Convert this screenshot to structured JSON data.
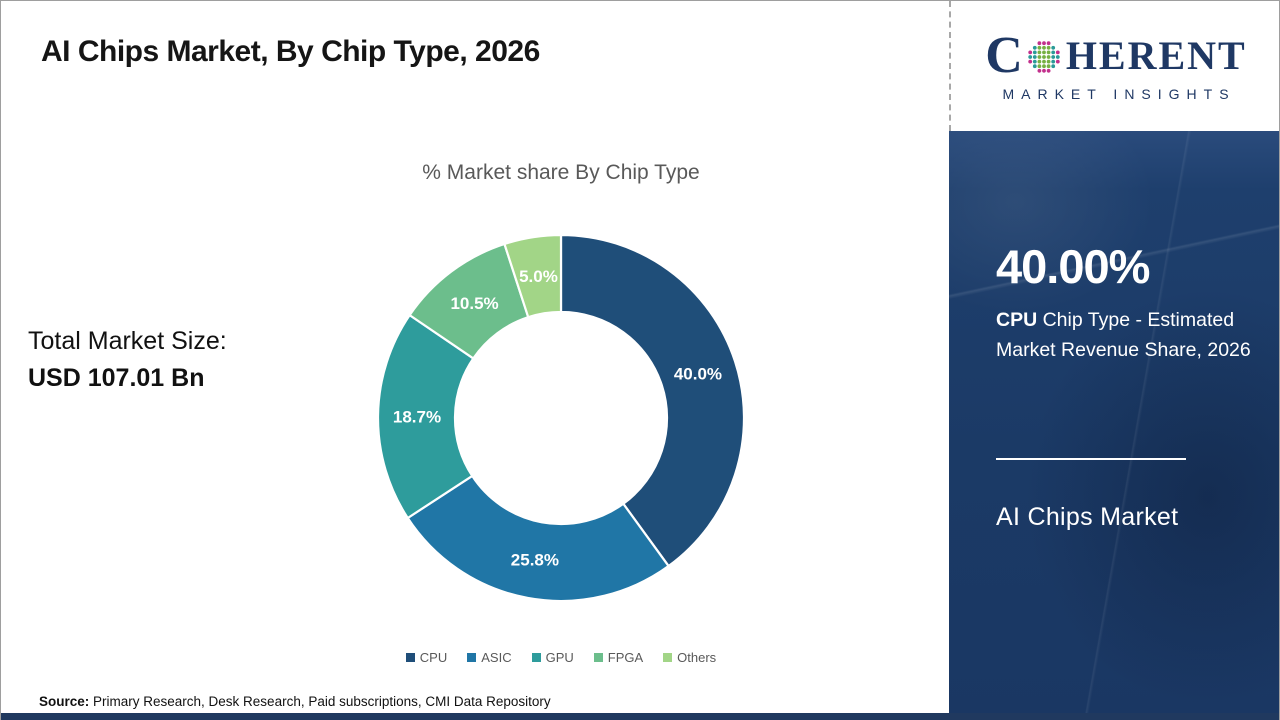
{
  "header": {
    "title": "AI Chips Market, By Chip Type, 2026"
  },
  "logo": {
    "brand_first_letter": "C",
    "brand_rest": "HERENT",
    "tagline": "MARKET INSIGHTS",
    "brand_color": "#1F3864",
    "dot_colors": [
      "#2B9A98",
      "#76B043",
      "#C2308C"
    ]
  },
  "left_panel": {
    "total_label": "Total Market Size:",
    "total_value": "USD 107.01 Bn"
  },
  "chart_data": {
    "type": "pie",
    "subtype": "donut",
    "title": "% Market share By Chip Type",
    "categories": [
      "CPU",
      "ASIC",
      "GPU",
      "FPGA",
      "Others"
    ],
    "values": [
      40.0,
      25.8,
      18.7,
      10.5,
      5.0
    ],
    "labels": [
      "40.0%",
      "25.8%",
      "18.7%",
      "10.5%",
      "5.0%"
    ],
    "colors": [
      "#1F4E79",
      "#2076A6",
      "#2E9C9C",
      "#6CBE8C",
      "#A2D587"
    ],
    "start_angle_deg": 0,
    "direction": "clockwise",
    "legend_position": "bottom",
    "label_color": "#ffffff"
  },
  "sidebar": {
    "highlight_value": "40.00%",
    "highlight_bold": "CPU",
    "highlight_rest": " Chip Type - Estimated Market Revenue Share, 2026",
    "market_name": "AI Chips Market",
    "background_color": "#1B3A66"
  },
  "footer": {
    "source_label": "Source:",
    "source_text": " Primary Research, Desk Research, Paid subscriptions, CMI Data Repository"
  }
}
